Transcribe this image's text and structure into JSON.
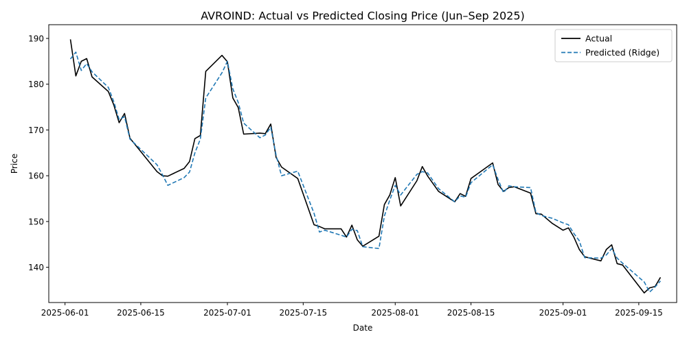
{
  "chart_data": {
    "type": "line",
    "title": "AVROIND: Actual vs Predicted Closing Price (Jun–Sep 2025)",
    "xlabel": "Date",
    "ylabel": "Price",
    "x_ticks": [
      "2025-06-01",
      "2025-06-15",
      "2025-07-01",
      "2025-07-15",
      "2025-08-01",
      "2025-08-15",
      "2025-09-01",
      "2025-09-15"
    ],
    "y_ticks": [
      140,
      150,
      160,
      170,
      180,
      190
    ],
    "xlim": [
      "2025-05-29",
      "2025-09-22"
    ],
    "ylim": [
      132.3,
      193.0
    ],
    "legend": "top-right",
    "grid": false,
    "series": [
      {
        "name": "Actual",
        "color": "#000000",
        "style": "solid",
        "points": [
          [
            "2025-06-02",
            189.8
          ],
          [
            "2025-06-03",
            181.8
          ],
          [
            "2025-06-04",
            185.0
          ],
          [
            "2025-06-05",
            185.6
          ],
          [
            "2025-06-06",
            181.6
          ],
          [
            "2025-06-09",
            178.4
          ],
          [
            "2025-06-10",
            175.5
          ],
          [
            "2025-06-11",
            171.6
          ],
          [
            "2025-06-12",
            173.6
          ],
          [
            "2025-06-13",
            168.2
          ],
          [
            "2025-06-18",
            160.9
          ],
          [
            "2025-06-19",
            160.0
          ],
          [
            "2025-06-20",
            159.9
          ],
          [
            "2025-06-23",
            161.6
          ],
          [
            "2025-06-24",
            163.1
          ],
          [
            "2025-06-25",
            168.1
          ],
          [
            "2025-06-26",
            168.8
          ],
          [
            "2025-06-27",
            182.8
          ],
          [
            "2025-06-30",
            186.3
          ],
          [
            "2025-07-01",
            184.9
          ],
          [
            "2025-07-02",
            177.0
          ],
          [
            "2025-07-03",
            174.9
          ],
          [
            "2025-07-04",
            169.1
          ],
          [
            "2025-07-07",
            169.3
          ],
          [
            "2025-07-08",
            169.2
          ],
          [
            "2025-07-09",
            171.3
          ],
          [
            "2025-07-10",
            164.0
          ],
          [
            "2025-07-11",
            161.9
          ],
          [
            "2025-07-14",
            159.4
          ],
          [
            "2025-07-17",
            149.3
          ],
          [
            "2025-07-18",
            148.9
          ],
          [
            "2025-07-19",
            148.4
          ],
          [
            "2025-07-22",
            148.4
          ],
          [
            "2025-07-23",
            146.6
          ],
          [
            "2025-07-24",
            149.2
          ],
          [
            "2025-07-25",
            146.0
          ],
          [
            "2025-07-26",
            144.6
          ],
          [
            "2025-07-29",
            146.8
          ],
          [
            "2025-07-30",
            153.7
          ],
          [
            "2025-07-31",
            155.8
          ],
          [
            "2025-08-01",
            159.6
          ],
          [
            "2025-08-02",
            153.4
          ],
          [
            "2025-08-05",
            158.9
          ],
          [
            "2025-08-06",
            162.0
          ],
          [
            "2025-08-07",
            159.9
          ],
          [
            "2025-08-09",
            156.6
          ],
          [
            "2025-08-12",
            154.3
          ],
          [
            "2025-08-13",
            156.1
          ],
          [
            "2025-08-14",
            155.5
          ],
          [
            "2025-08-15",
            159.4
          ],
          [
            "2025-08-19",
            162.8
          ],
          [
            "2025-08-20",
            158.1
          ],
          [
            "2025-08-21",
            156.6
          ],
          [
            "2025-08-22",
            157.4
          ],
          [
            "2025-08-23",
            157.6
          ],
          [
            "2025-08-26",
            156.2
          ],
          [
            "2025-08-27",
            151.7
          ],
          [
            "2025-08-28",
            151.6
          ],
          [
            "2025-08-30",
            149.6
          ],
          [
            "2025-09-01",
            148.1
          ],
          [
            "2025-09-02",
            148.6
          ],
          [
            "2025-09-03",
            146.6
          ],
          [
            "2025-09-04",
            143.9
          ],
          [
            "2025-09-05",
            142.3
          ],
          [
            "2025-09-08",
            141.4
          ],
          [
            "2025-09-09",
            143.9
          ],
          [
            "2025-09-10",
            144.9
          ],
          [
            "2025-09-11",
            140.8
          ],
          [
            "2025-09-12",
            140.5
          ],
          [
            "2025-09-16",
            134.4
          ],
          [
            "2025-09-17",
            135.5
          ],
          [
            "2025-09-18",
            135.8
          ],
          [
            "2025-09-19",
            137.8
          ]
        ]
      },
      {
        "name": "Predicted (Ridge)",
        "color": "#1f77b4",
        "style": "dashed",
        "points": [
          [
            "2025-06-02",
            185.5
          ],
          [
            "2025-06-03",
            187.0
          ],
          [
            "2025-06-04",
            183.0
          ],
          [
            "2025-06-05",
            184.5
          ],
          [
            "2025-06-06",
            182.7
          ],
          [
            "2025-06-09",
            179.3
          ],
          [
            "2025-06-10",
            176.2
          ],
          [
            "2025-06-11",
            172.3
          ],
          [
            "2025-06-12",
            172.9
          ],
          [
            "2025-06-13",
            168.0
          ],
          [
            "2025-06-18",
            162.4
          ],
          [
            "2025-06-19",
            160.2
          ],
          [
            "2025-06-20",
            157.9
          ],
          [
            "2025-06-23",
            159.6
          ],
          [
            "2025-06-24",
            160.8
          ],
          [
            "2025-06-25",
            165.0
          ],
          [
            "2025-06-26",
            168.0
          ],
          [
            "2025-06-27",
            177.0
          ],
          [
            "2025-06-30",
            182.5
          ],
          [
            "2025-07-01",
            185.0
          ],
          [
            "2025-07-02",
            179.0
          ],
          [
            "2025-07-03",
            176.0
          ],
          [
            "2025-07-04",
            171.5
          ],
          [
            "2025-07-07",
            168.3
          ],
          [
            "2025-07-08",
            168.9
          ],
          [
            "2025-07-09",
            170.6
          ],
          [
            "2025-07-10",
            164.5
          ],
          [
            "2025-07-11",
            160.0
          ],
          [
            "2025-07-14",
            161.0
          ],
          [
            "2025-07-17",
            151.8
          ],
          [
            "2025-07-18",
            147.7
          ],
          [
            "2025-07-19",
            148.1
          ],
          [
            "2025-07-22",
            147.0
          ],
          [
            "2025-07-23",
            146.6
          ],
          [
            "2025-07-24",
            148.3
          ],
          [
            "2025-07-25",
            148.0
          ],
          [
            "2025-07-26",
            144.5
          ],
          [
            "2025-07-29",
            144.1
          ],
          [
            "2025-07-30",
            151.2
          ],
          [
            "2025-07-31",
            154.7
          ],
          [
            "2025-08-01",
            157.9
          ],
          [
            "2025-08-02",
            155.8
          ],
          [
            "2025-08-05",
            160.3
          ],
          [
            "2025-08-06",
            160.9
          ],
          [
            "2025-08-07",
            160.6
          ],
          [
            "2025-08-09",
            157.2
          ],
          [
            "2025-08-12",
            154.3
          ],
          [
            "2025-08-13",
            155.6
          ],
          [
            "2025-08-14",
            155.3
          ],
          [
            "2025-08-15",
            158.5
          ],
          [
            "2025-08-19",
            162.4
          ],
          [
            "2025-08-20",
            159.2
          ],
          [
            "2025-08-21",
            156.3
          ],
          [
            "2025-08-22",
            157.8
          ],
          [
            "2025-08-23",
            157.6
          ],
          [
            "2025-08-26",
            157.4
          ],
          [
            "2025-08-27",
            152.0
          ],
          [
            "2025-08-28",
            151.3
          ],
          [
            "2025-08-30",
            150.7
          ],
          [
            "2025-09-01",
            149.7
          ],
          [
            "2025-09-02",
            149.3
          ],
          [
            "2025-09-03",
            147.4
          ],
          [
            "2025-09-04",
            145.8
          ],
          [
            "2025-09-05",
            142.1
          ],
          [
            "2025-09-08",
            142.0
          ],
          [
            "2025-09-09",
            142.7
          ],
          [
            "2025-09-10",
            144.1
          ],
          [
            "2025-09-11",
            142.0
          ],
          [
            "2025-09-12",
            140.9
          ],
          [
            "2025-09-16",
            136.8
          ],
          [
            "2025-09-17",
            134.6
          ],
          [
            "2025-09-18",
            135.7
          ],
          [
            "2025-09-19",
            137.0
          ]
        ]
      }
    ]
  }
}
